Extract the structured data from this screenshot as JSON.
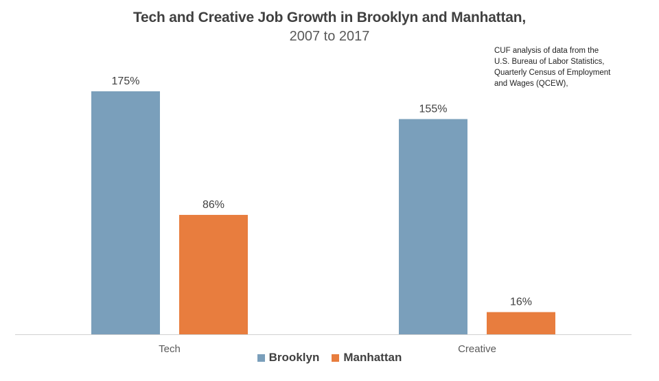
{
  "chart_data": {
    "type": "bar",
    "title": "Tech and Creative Job Growth in Brooklyn and Manhattan,",
    "subtitle": "2007 to 2017",
    "categories": [
      "Tech",
      "Creative"
    ],
    "series": [
      {
        "name": "Brooklyn",
        "values": [
          175,
          155
        ],
        "color": "#7a9fbb",
        "labels": [
          "175%",
          "155%"
        ]
      },
      {
        "name": "Manhattan",
        "values": [
          86,
          16
        ],
        "color": "#e87d3e",
        "labels": [
          "86%",
          "16%"
        ]
      }
    ],
    "ylim": [
      0,
      175
    ],
    "grid": false,
    "legend_position": "bottom",
    "xlabel": "",
    "ylabel": "",
    "annotation": [
      "CUF analysis of data from the",
      "U.S. Bureau of Labor Statistics,",
      "Quarterly Census of Employment",
      "and Wages (QCEW),"
    ]
  }
}
